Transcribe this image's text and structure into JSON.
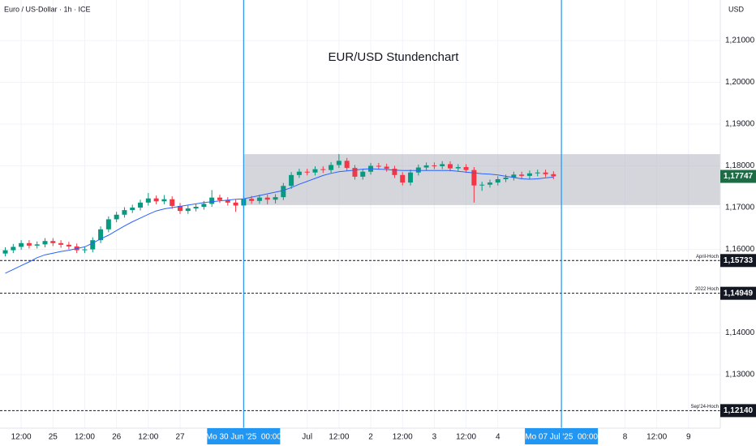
{
  "chart_data": {
    "type": "candlestick",
    "symbol": "Euro / US-Dollar · 1h · ICE",
    "currency": "USD",
    "title": "EUR/USD Stundenchart",
    "up_color": "#089981",
    "down_color": "#f23645",
    "x": [
      -90,
      -87,
      -84,
      -81,
      -78,
      -75,
      -72,
      -69,
      -66,
      -63,
      -60,
      -57,
      -54,
      -51,
      -48,
      -45,
      -42,
      -39,
      -36,
      -33,
      -30,
      -27,
      -24,
      -21,
      -18,
      -15,
      -12,
      -9,
      -6,
      -3,
      0,
      3,
      6,
      9,
      12,
      15,
      18,
      21,
      24,
      27,
      30,
      33,
      36,
      39,
      42,
      45,
      48,
      51,
      54,
      57,
      60,
      63,
      66,
      69,
      72,
      75,
      78,
      81,
      84,
      87,
      90,
      93,
      96,
      99,
      102,
      105,
      108,
      111,
      114,
      117
    ],
    "open": [
      1.159,
      1.1598,
      1.1606,
      1.1615,
      1.1609,
      1.1612,
      1.162,
      1.1615,
      1.1611,
      1.1607,
      1.1598,
      1.16,
      1.1622,
      1.1648,
      1.1672,
      1.1683,
      1.1694,
      1.17,
      1.1712,
      1.1722,
      1.1715,
      1.172,
      1.1704,
      1.1692,
      1.1698,
      1.1702,
      1.1709,
      1.1724,
      1.1718,
      1.1712,
      1.1705,
      1.1721,
      1.1716,
      1.1724,
      1.1719,
      1.1725,
      1.1752,
      1.1778,
      1.1786,
      1.1784,
      1.1792,
      1.179,
      1.1802,
      1.1812,
      1.1795,
      1.1774,
      1.1786,
      1.18,
      1.1798,
      1.1793,
      1.1778,
      1.176,
      1.1784,
      1.1796,
      1.1801,
      1.1799,
      1.1804,
      1.1794,
      1.1797,
      1.179,
      1.1753,
      1.1755,
      1.176,
      1.1768,
      1.1772,
      1.1779,
      1.1776,
      1.1782,
      1.1784,
      1.178
    ],
    "high": [
      1.1605,
      1.1613,
      1.1622,
      1.1622,
      1.1619,
      1.1627,
      1.1627,
      1.1622,
      1.1618,
      1.1614,
      1.1607,
      1.1629,
      1.1655,
      1.1679,
      1.169,
      1.1701,
      1.1707,
      1.1719,
      1.1735,
      1.1729,
      1.173,
      1.1727,
      1.1711,
      1.1705,
      1.1709,
      1.1716,
      1.1742,
      1.1731,
      1.1725,
      1.1719,
      1.1728,
      1.1728,
      1.1731,
      1.1731,
      1.1732,
      1.1759,
      1.1785,
      1.1793,
      1.1793,
      1.1799,
      1.1799,
      1.1809,
      1.1828,
      1.1819,
      1.1802,
      1.1793,
      1.1807,
      1.1807,
      1.1805,
      1.18,
      1.1785,
      1.1791,
      1.1803,
      1.1808,
      1.1808,
      1.1811,
      1.1811,
      1.1804,
      1.1804,
      1.1797,
      1.1762,
      1.1767,
      1.1775,
      1.1779,
      1.1786,
      1.1786,
      1.1789,
      1.1791,
      1.1791,
      1.1787
    ],
    "low": [
      1.1583,
      1.1591,
      1.1599,
      1.1602,
      1.1602,
      1.1605,
      1.1608,
      1.1604,
      1.16,
      1.1591,
      1.1591,
      1.1593,
      1.1615,
      1.1641,
      1.1665,
      1.1676,
      1.1687,
      1.1693,
      1.1705,
      1.1708,
      1.1708,
      1.1697,
      1.1685,
      1.1685,
      1.1691,
      1.1695,
      1.1702,
      1.1711,
      1.1705,
      1.169,
      1.1698,
      1.1709,
      1.1709,
      1.1708,
      1.171,
      1.1718,
      1.1745,
      1.1771,
      1.1777,
      1.1777,
      1.1783,
      1.1783,
      1.1795,
      1.1788,
      1.1767,
      1.1767,
      1.1779,
      1.1791,
      1.1786,
      1.1771,
      1.1753,
      1.1753,
      1.1777,
      1.1789,
      1.1792,
      1.1792,
      1.1787,
      1.1787,
      1.1783,
      1.1712,
      1.174,
      1.1748,
      1.1753,
      1.1761,
      1.1765,
      1.1769,
      1.1769,
      1.1775,
      1.1773,
      1.1768
    ],
    "close": [
      1.1598,
      1.1606,
      1.1615,
      1.1609,
      1.1612,
      1.162,
      1.1615,
      1.1611,
      1.1607,
      1.1598,
      1.16,
      1.1622,
      1.1648,
      1.1672,
      1.1683,
      1.1694,
      1.17,
      1.1712,
      1.1722,
      1.1715,
      1.172,
      1.1704,
      1.1692,
      1.1698,
      1.1702,
      1.1709,
      1.1724,
      1.1718,
      1.1712,
      1.1705,
      1.1721,
      1.1716,
      1.1724,
      1.1719,
      1.1725,
      1.1752,
      1.1778,
      1.1786,
      1.1784,
      1.1792,
      1.179,
      1.1802,
      1.1812,
      1.1795,
      1.1774,
      1.1786,
      1.18,
      1.1798,
      1.1793,
      1.1778,
      1.176,
      1.1784,
      1.1796,
      1.1801,
      1.1799,
      1.1804,
      1.1794,
      1.1797,
      1.179,
      1.1753,
      1.1755,
      1.176,
      1.1768,
      1.1772,
      1.1779,
      1.1776,
      1.1782,
      1.1784,
      1.178,
      1.1775
    ],
    "moving_average": {
      "color": "#2962ff",
      "values": [
        1.1543,
        1.1552,
        1.1561,
        1.157,
        1.158,
        1.1587,
        1.1591,
        1.1595,
        1.1598,
        1.1602,
        1.1606,
        1.1615,
        1.1625,
        1.1634,
        1.1645,
        1.1656,
        1.1666,
        1.1675,
        1.1684,
        1.1692,
        1.1697,
        1.17,
        1.1703,
        1.1706,
        1.1709,
        1.1712,
        1.1714,
        1.1716,
        1.1718,
        1.172,
        1.1721,
        1.1725,
        1.1729,
        1.1733,
        1.1737,
        1.1741,
        1.1748,
        1.1756,
        1.1763,
        1.177,
        1.1777,
        1.1782,
        1.1786,
        1.1788,
        1.179,
        1.1792,
        1.1793,
        1.1792,
        1.1791,
        1.179,
        1.1789,
        1.1789,
        1.1789,
        1.1789,
        1.1789,
        1.1789,
        1.1789,
        1.1787,
        1.1785,
        1.1783,
        1.1781,
        1.178,
        1.1778,
        1.1775,
        1.1772,
        1.1769,
        1.1768,
        1.1769,
        1.1771,
        1.1773
      ]
    },
    "zone": {
      "from": 1.1706,
      "to": 1.1828,
      "x_start": 0,
      "color": "#b2b5be"
    },
    "vlines": [
      {
        "value": 0,
        "label": "Mo 30 Jun '25  00:00"
      },
      {
        "value": 120,
        "label": "Mo 07 Jul '25  00:00"
      }
    ],
    "vline_color": "#2196f3",
    "levels": [
      {
        "value": 1.15733,
        "label": "1,15733",
        "name": "April-Hoch"
      },
      {
        "value": 1.14949,
        "label": "1,14949",
        "name": "2022 Hoch"
      },
      {
        "value": 1.1214,
        "label": "1,12140",
        "name": "Sep'24-Hoch"
      }
    ],
    "last_price": {
      "value": 1.17747,
      "label": "1,17747",
      "color": "#1e6b45"
    },
    "xlim": [
      -92,
      180
    ],
    "ylim": [
      1.1172,
      1.2197
    ],
    "xticks": [
      {
        "value": -84,
        "label": "12:00"
      },
      {
        "value": -72,
        "label": "25"
      },
      {
        "value": -60,
        "label": "12:00"
      },
      {
        "value": -48,
        "label": "26"
      },
      {
        "value": -36,
        "label": "12:00"
      },
      {
        "value": -24,
        "label": "27"
      },
      {
        "value": 24,
        "label": "Jul"
      },
      {
        "value": 36,
        "label": "12:00"
      },
      {
        "value": 48,
        "label": "2"
      },
      {
        "value": 60,
        "label": "12:00"
      },
      {
        "value": 72,
        "label": "3"
      },
      {
        "value": 84,
        "label": "12:00"
      },
      {
        "value": 96,
        "label": "4"
      },
      {
        "value": 144,
        "label": "8"
      },
      {
        "value": 156,
        "label": "12:00"
      },
      {
        "value": 168,
        "label": "9"
      }
    ],
    "yticks": [
      {
        "value": 1.13,
        "label": "1,13000"
      },
      {
        "value": 1.14,
        "label": "1,14000"
      },
      {
        "value": 1.16,
        "label": "1,16000"
      },
      {
        "value": 1.17,
        "label": "1,17000"
      },
      {
        "value": 1.18,
        "label": "1,18000"
      },
      {
        "value": 1.19,
        "label": "1,19000"
      },
      {
        "value": 1.2,
        "label": "1,20000"
      },
      {
        "value": 1.21,
        "label": "1,21000"
      }
    ],
    "grid": true
  }
}
